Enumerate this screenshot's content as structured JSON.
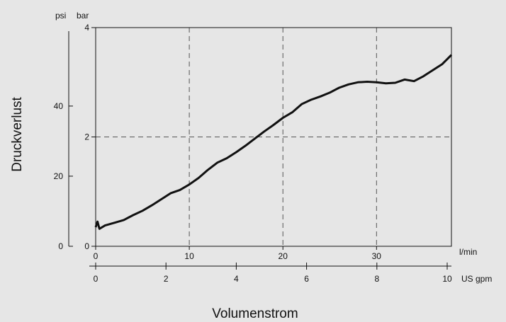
{
  "chart_data": {
    "type": "line",
    "title": "",
    "xlabel": "Volumenstrom",
    "ylabel": "Druckverlust",
    "x_unit": "l/min",
    "x_secondary_unit": "US gpm",
    "y_unit": "bar",
    "y_secondary_unit": "psi",
    "xlim": [
      0,
      38
    ],
    "ylim": [
      0,
      4
    ],
    "x_ticks": [
      0,
      10,
      20,
      30
    ],
    "x_secondary_ticks": [
      0,
      2,
      4,
      6,
      8,
      10
    ],
    "y_ticks": [
      0,
      2,
      4
    ],
    "y_secondary_ticks": [
      0,
      20,
      40
    ],
    "grid": {
      "x": [
        10,
        20,
        30
      ],
      "y": [
        2
      ]
    },
    "series": [
      {
        "x": [
          0,
          0.2,
          0.4,
          1,
          2,
          3,
          4,
          5,
          6,
          7,
          8,
          9,
          10,
          11,
          12,
          13,
          14,
          15,
          16,
          17,
          18,
          19,
          20,
          21,
          22,
          23,
          24,
          25,
          26,
          27,
          28,
          29,
          30,
          31,
          32,
          33,
          34,
          35,
          36,
          37,
          38
        ],
        "y": [
          0.35,
          0.45,
          0.32,
          0.38,
          0.43,
          0.48,
          0.57,
          0.65,
          0.75,
          0.86,
          0.97,
          1.03,
          1.13,
          1.25,
          1.4,
          1.53,
          1.61,
          1.72,
          1.84,
          1.97,
          2.1,
          2.22,
          2.35,
          2.45,
          2.6,
          2.68,
          2.74,
          2.81,
          2.9,
          2.96,
          3.0,
          3.01,
          3.0,
          2.98,
          2.99,
          3.05,
          3.02,
          3.11,
          3.22,
          3.33,
          3.5
        ]
      }
    ]
  }
}
